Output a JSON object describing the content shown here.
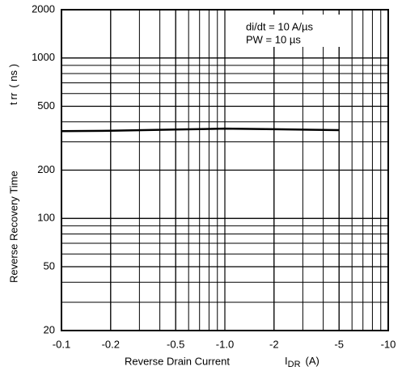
{
  "chart_data": {
    "type": "line",
    "annotations": [
      "di/dt = 10 A/µs",
      "PW = 10 µs"
    ],
    "x_label": "Reverse Drain Current",
    "x_symbol": "I",
    "x_symbol_sub": "DR",
    "x_unit": "(A)",
    "y_label": "Reverse Recovery Time",
    "y_symbol": "t",
    "y_symbol_sub": "rr",
    "y_unit": "( ns )",
    "x": [
      -0.1,
      -0.2,
      -0.5,
      -1,
      -2,
      -5
    ],
    "series": [
      {
        "color": "#000000",
        "values": [
          350,
          352,
          358,
          363,
          360,
          355
        ]
      }
    ],
    "xlim": [
      -0.1,
      -10
    ],
    "xticks": [
      -0.1,
      -0.2,
      -0.5,
      {
        "value": -1,
        "label": "-1.0"
      },
      -2,
      -5,
      -10
    ],
    "ylim": [
      20,
      2000
    ],
    "yticks": [
      20,
      50,
      100,
      200,
      500,
      1000,
      2000
    ],
    "xlog": true,
    "ylog": true,
    "grid": true
  }
}
